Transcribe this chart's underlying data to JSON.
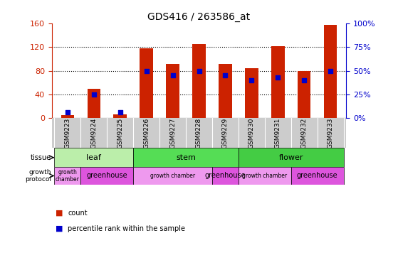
{
  "title": "GDS416 / 263586_at",
  "samples": [
    "GSM9223",
    "GSM9224",
    "GSM9225",
    "GSM9226",
    "GSM9227",
    "GSM9228",
    "GSM9229",
    "GSM9230",
    "GSM9231",
    "GSM9232",
    "GSM9233"
  ],
  "counts": [
    5,
    50,
    7,
    118,
    92,
    125,
    92,
    85,
    122,
    80,
    158
  ],
  "percentile_ranks": [
    6,
    25,
    6,
    50,
    45,
    50,
    45,
    40,
    43,
    40,
    50
  ],
  "ylim_left": [
    0,
    160
  ],
  "ylim_right": [
    0,
    100
  ],
  "yticks_left": [
    0,
    40,
    80,
    120,
    160
  ],
  "yticks_right": [
    0,
    25,
    50,
    75,
    100
  ],
  "tissue_groups": [
    {
      "label": "leaf",
      "start": 0,
      "end": 2,
      "color": "#bbeeaa"
    },
    {
      "label": "stem",
      "start": 3,
      "end": 6,
      "color": "#55dd55"
    },
    {
      "label": "flower",
      "start": 7,
      "end": 10,
      "color": "#44cc44"
    }
  ],
  "protocol_groups": [
    {
      "label": "growth\nchamber",
      "start": 0,
      "end": 0,
      "color": "#ee99ee"
    },
    {
      "label": "greenhouse",
      "start": 1,
      "end": 2,
      "color": "#dd55dd"
    },
    {
      "label": "growth chamber",
      "start": 3,
      "end": 5,
      "color": "#ee99ee"
    },
    {
      "label": "greenhouse",
      "start": 6,
      "end": 6,
      "color": "#dd55dd"
    },
    {
      "label": "growth chamber",
      "start": 7,
      "end": 8,
      "color": "#ee99ee"
    },
    {
      "label": "greenhouse",
      "start": 9,
      "end": 10,
      "color": "#dd55dd"
    }
  ],
  "bar_color": "#cc2200",
  "dot_color": "#0000cc",
  "axis_color_left": "#cc2200",
  "axis_color_right": "#0000cc",
  "tick_bg_color": "#cccccc",
  "plot_bg_color": "#ffffff"
}
